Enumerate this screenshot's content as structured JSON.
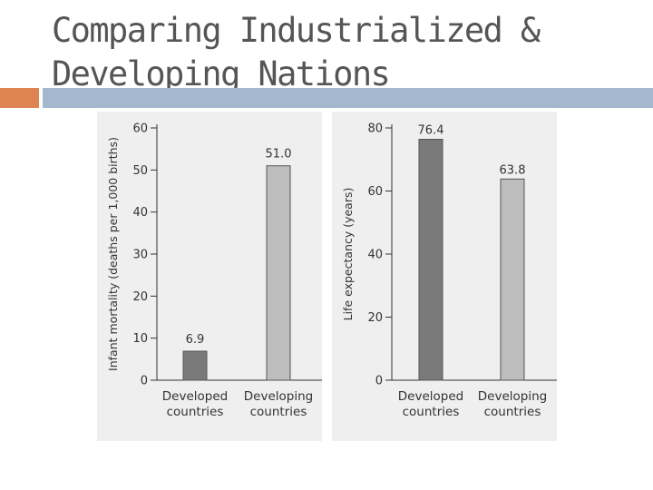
{
  "slide": {
    "title": "Comparing Industrialized &\nDeveloping Nations",
    "accent_colors": {
      "square": "#dd8452",
      "bar": "#a3b8cc"
    }
  },
  "chart_data": [
    {
      "type": "bar",
      "ylabel": "Infant mortality (deaths per 1,000 births)",
      "categories": [
        "Developed countries",
        "Developing countries"
      ],
      "category_labels": [
        [
          "Developed",
          "countries"
        ],
        [
          "Developing",
          "countries"
        ]
      ],
      "values": [
        6.9,
        51.0
      ],
      "value_labels": [
        "6.9",
        "51.0"
      ],
      "ylim": [
        0,
        60
      ],
      "yticks": [
        0,
        10,
        20,
        30,
        40,
        50,
        60
      ],
      "bar_colors": [
        "#7a7a7a",
        "#bdbdbd"
      ],
      "grid": false
    },
    {
      "type": "bar",
      "ylabel": "Life expectancy (years)",
      "categories": [
        "Developed countries",
        "Developing countries"
      ],
      "category_labels": [
        [
          "Developed",
          "countries"
        ],
        [
          "Developing",
          "countries"
        ]
      ],
      "values": [
        76.4,
        63.8
      ],
      "value_labels": [
        "76.4",
        "63.8"
      ],
      "ylim": [
        0,
        80
      ],
      "yticks": [
        0,
        20,
        40,
        60,
        80
      ],
      "bar_colors": [
        "#7a7a7a",
        "#bdbdbd"
      ],
      "grid": false
    }
  ]
}
